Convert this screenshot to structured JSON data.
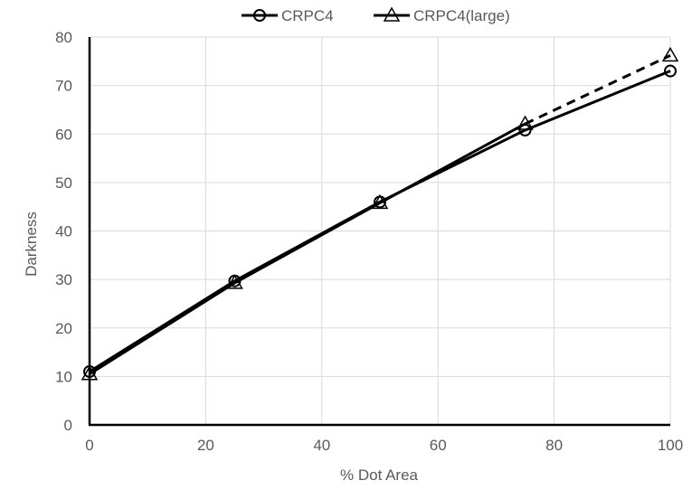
{
  "chart_data": {
    "type": "line",
    "title": "",
    "xlabel": "% Dot Area",
    "ylabel": "Darkness",
    "xlim": [
      0,
      100
    ],
    "ylim": [
      0,
      80
    ],
    "xticks": [
      0,
      20,
      40,
      60,
      80,
      100
    ],
    "yticks": [
      0,
      10,
      20,
      30,
      40,
      50,
      60,
      70,
      80
    ],
    "grid": true,
    "legend_position": "top",
    "series": [
      {
        "name": "CRPC4",
        "marker": "circle",
        "line_style": "solid",
        "color": "#000000",
        "x": [
          0,
          25,
          50,
          75,
          100
        ],
        "y": [
          11,
          29.7,
          46,
          60.8,
          73
        ]
      },
      {
        "name": "CRPC4(large)",
        "marker": "triangle",
        "line_style": "mixed",
        "color": "#000000",
        "x": [
          0,
          25,
          50,
          75,
          100
        ],
        "y": [
          10.5,
          29.3,
          45.8,
          62.1,
          76.2
        ],
        "dashed_after_x": 75
      }
    ]
  }
}
